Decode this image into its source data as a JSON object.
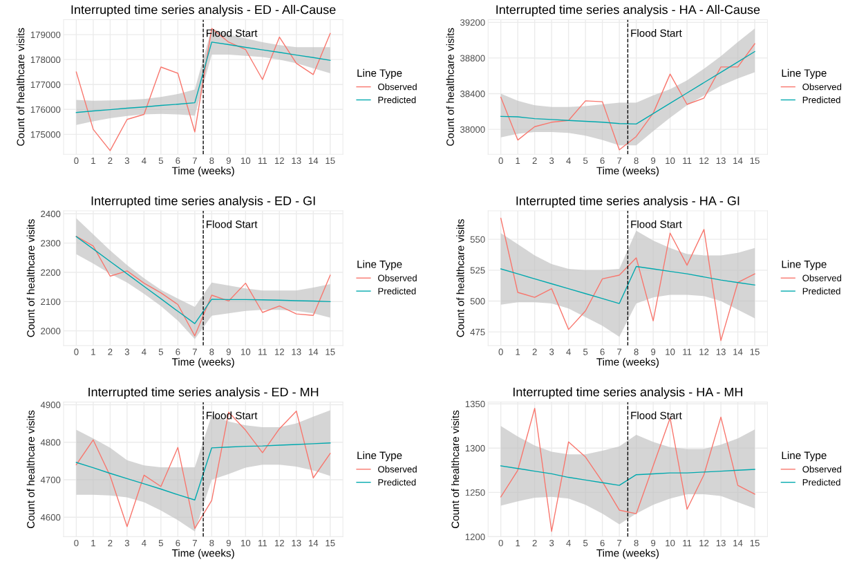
{
  "chart_data": [
    {
      "type": "line",
      "title": "Interrupted time series analysis - ED - All-Cause",
      "xlabel": "Time (weeks)",
      "ylabel": "Count of healthcare visits",
      "legend_title": "Line Type",
      "legend": "right",
      "grid": true,
      "line_style": "solid",
      "x": [
        0,
        1,
        2,
        3,
        4,
        5,
        6,
        7,
        8,
        9,
        10,
        11,
        12,
        13,
        14,
        15
      ],
      "xlim": [
        -0.75,
        15.75
      ],
      "xticks": [
        0,
        1,
        2,
        3,
        4,
        5,
        6,
        7,
        8,
        9,
        10,
        11,
        12,
        13,
        14,
        15
      ],
      "ylim": [
        174200,
        179600
      ],
      "yticks": [
        175000,
        176000,
        177000,
        178000,
        179000
      ],
      "ref_lines": [
        {
          "axis": "x",
          "value": 7.5,
          "label": "Flood Start",
          "color": "#000000",
          "line_style": "dashed"
        }
      ],
      "series": [
        {
          "name": "Observed",
          "color": "#f8766d",
          "values": [
            177500,
            175200,
            174350,
            175600,
            175800,
            177700,
            177450,
            175100,
            179250,
            178700,
            178400,
            177200,
            178900,
            177850,
            177400,
            179050
          ]
        },
        {
          "name": "Predicted",
          "color": "#00a9ae",
          "values": [
            175880,
            175940,
            175990,
            176050,
            176100,
            176160,
            176210,
            176270,
            178700,
            178600,
            178490,
            178390,
            178290,
            178180,
            178080,
            177970
          ],
          "lower": [
            175380,
            175520,
            175650,
            175740,
            175800,
            175820,
            175800,
            175750,
            178200,
            178200,
            178150,
            178100,
            178000,
            177850,
            177650,
            177450
          ],
          "upper": [
            176380,
            176350,
            176360,
            176380,
            176420,
            176500,
            176620,
            176800,
            179250,
            179000,
            178850,
            178700,
            178580,
            178500,
            178500,
            178500
          ]
        }
      ]
    },
    {
      "type": "line",
      "title": "Interrupted time series analysis - HA - All-Cause",
      "xlabel": "Time (weeks)",
      "ylabel": "Count of healthcare visits",
      "legend_title": "Line Type",
      "legend": "right",
      "grid": true,
      "line_style": "solid",
      "x": [
        0,
        1,
        2,
        3,
        4,
        5,
        6,
        7,
        8,
        9,
        10,
        11,
        12,
        13,
        14,
        15
      ],
      "xlim": [
        -0.75,
        15.75
      ],
      "xticks": [
        0,
        1,
        2,
        3,
        4,
        5,
        6,
        7,
        8,
        9,
        10,
        11,
        12,
        13,
        14,
        15
      ],
      "ylim": [
        37720,
        39230
      ],
      "yticks": [
        38000,
        38400,
        38800,
        39200
      ],
      "ref_lines": [
        {
          "axis": "x",
          "value": 7.5,
          "label": "Flood Start",
          "color": "#000000",
          "line_style": "dashed"
        }
      ],
      "series": [
        {
          "name": "Observed",
          "color": "#f8766d",
          "values": [
            38360,
            37880,
            38030,
            38080,
            38100,
            38320,
            38310,
            37770,
            37920,
            38180,
            38620,
            38280,
            38350,
            38700,
            38700,
            38960
          ]
        },
        {
          "name": "Predicted",
          "color": "#00a9ae",
          "values": [
            38145,
            38140,
            38120,
            38110,
            38100,
            38090,
            38080,
            38065,
            38060,
            38176,
            38292,
            38408,
            38524,
            38640,
            38756,
            38872
          ],
          "lower": [
            37910,
            37950,
            37970,
            37970,
            37960,
            37930,
            37880,
            37820,
            37820,
            37980,
            38130,
            38270,
            38380,
            38490,
            38570,
            38640
          ],
          "upper": [
            38400,
            38320,
            38270,
            38250,
            38250,
            38260,
            38280,
            38300,
            38300,
            38380,
            38450,
            38550,
            38680,
            38820,
            38980,
            39130
          ]
        }
      ]
    },
    {
      "type": "line",
      "title": "Interrupted time series analysis - ED - GI",
      "xlabel": "Time (weeks)",
      "ylabel": "Count of healthcare visits",
      "legend_title": "Line Type",
      "legend": "right",
      "grid": true,
      "line_style": "solid",
      "x": [
        0,
        1,
        2,
        3,
        4,
        5,
        6,
        7,
        8,
        9,
        10,
        11,
        12,
        13,
        14,
        15
      ],
      "xlim": [
        -0.75,
        15.75
      ],
      "xticks": [
        0,
        1,
        2,
        3,
        4,
        5,
        6,
        7,
        8,
        9,
        10,
        11,
        12,
        13,
        14,
        15
      ],
      "ylim": [
        1950,
        2410
      ],
      "yticks": [
        2000,
        2100,
        2200,
        2300,
        2400
      ],
      "ref_lines": [
        {
          "axis": "x",
          "value": 7.5,
          "label": "Flood Start",
          "color": "#000000",
          "line_style": "dashed"
        }
      ],
      "series": [
        {
          "name": "Observed",
          "color": "#f8766d",
          "values": [
            2323,
            2290,
            2187,
            2205,
            2163,
            2130,
            2090,
            1983,
            2122,
            2102,
            2163,
            2063,
            2085,
            2058,
            2053,
            2190
          ]
        },
        {
          "name": "Predicted",
          "color": "#00a9ae",
          "values": [
            2322,
            2280,
            2237,
            2195,
            2152,
            2110,
            2067,
            2025,
            2108,
            2107,
            2107,
            2106,
            2105,
            2103,
            2102,
            2100
          ],
          "lower": [
            2262,
            2230,
            2195,
            2165,
            2127,
            2085,
            2035,
            1972,
            2052,
            2060,
            2068,
            2072,
            2072,
            2068,
            2060,
            2045
          ],
          "upper": [
            2385,
            2330,
            2275,
            2225,
            2180,
            2140,
            2110,
            2082,
            2165,
            2155,
            2145,
            2138,
            2138,
            2138,
            2148,
            2160
          ]
        }
      ]
    },
    {
      "type": "line",
      "title": "Interrupted time series analysis - HA - GI",
      "xlabel": "Time (weeks)",
      "ylabel": "Count of healthcare visits",
      "legend_title": "Line Type",
      "legend": "right",
      "grid": true,
      "line_style": "solid",
      "x": [
        0,
        1,
        2,
        3,
        4,
        5,
        6,
        7,
        8,
        9,
        10,
        11,
        12,
        13,
        14,
        15
      ],
      "xlim": [
        -0.75,
        15.75
      ],
      "xticks": [
        0,
        1,
        2,
        3,
        4,
        5,
        6,
        7,
        8,
        9,
        10,
        11,
        12,
        13,
        14,
        15
      ],
      "ylim": [
        464,
        573
      ],
      "yticks": [
        475,
        500,
        525,
        550
      ],
      "ref_lines": [
        {
          "axis": "x",
          "value": 7.5,
          "label": "Flood Start",
          "color": "#000000",
          "line_style": "dashed"
        }
      ],
      "series": [
        {
          "name": "Observed",
          "color": "#f8766d",
          "values": [
            567,
            507,
            503,
            510,
            477,
            492,
            518,
            521,
            535,
            484,
            555,
            529,
            558,
            468,
            515,
            522
          ]
        },
        {
          "name": "Predicted",
          "color": "#00a9ae",
          "values": [
            526,
            522,
            518,
            514,
            510,
            506,
            502,
            498,
            528,
            526,
            524,
            522,
            519.5,
            517,
            515,
            513
          ],
          "lower": [
            497,
            499,
            499,
            498,
            494,
            487,
            480,
            471,
            498,
            503,
            505,
            505,
            504,
            500,
            493,
            486
          ],
          "upper": [
            555,
            546,
            537,
            530,
            526,
            525,
            525,
            526,
            557,
            549,
            543,
            538,
            537,
            537,
            539,
            543
          ]
        }
      ]
    },
    {
      "type": "line",
      "title": "Interrupted time series analysis - ED - MH",
      "xlabel": "Time (weeks)",
      "ylabel": "Count of healthcare visits",
      "legend_title": "Line Type",
      "legend": "right",
      "grid": true,
      "line_style": "solid",
      "x": [
        0,
        1,
        2,
        3,
        4,
        5,
        6,
        7,
        8,
        9,
        10,
        11,
        12,
        13,
        14,
        15
      ],
      "xlim": [
        -0.75,
        15.75
      ],
      "xticks": [
        0,
        1,
        2,
        3,
        4,
        5,
        6,
        7,
        8,
        9,
        10,
        11,
        12,
        13,
        14,
        15
      ],
      "ylim": [
        4548,
        4907
      ],
      "yticks": [
        4600,
        4700,
        4800,
        4900
      ],
      "ref_lines": [
        {
          "axis": "x",
          "value": 7.5,
          "label": "Flood Start",
          "color": "#000000",
          "line_style": "dashed"
        }
      ],
      "series": [
        {
          "name": "Observed",
          "color": "#f8766d",
          "values": [
            4740,
            4806,
            4710,
            4575,
            4712,
            4682,
            4786,
            4570,
            4645,
            4880,
            4832,
            4772,
            4836,
            4883,
            4705,
            4770
          ]
        },
        {
          "name": "Predicted",
          "color": "#00a9ae",
          "values": [
            4746,
            4732,
            4717,
            4703,
            4689,
            4675,
            4660,
            4646,
            4785,
            4787,
            4789,
            4790,
            4792,
            4794,
            4796,
            4798
          ],
          "lower": [
            4660,
            4660,
            4658,
            4653,
            4640,
            4618,
            4592,
            4562,
            4700,
            4715,
            4732,
            4740,
            4740,
            4735,
            4725,
            4710
          ],
          "upper": [
            4833,
            4810,
            4785,
            4752,
            4738,
            4733,
            4733,
            4733,
            4872,
            4855,
            4845,
            4840,
            4840,
            4850,
            4868,
            4885
          ]
        }
      ]
    },
    {
      "type": "line",
      "title": "Interrupted time series analysis - HA - MH",
      "xlabel": "Time (weeks)",
      "ylabel": "Count of healthcare visits",
      "legend_title": "Line Type",
      "legend": "right",
      "grid": true,
      "line_style": "solid",
      "x": [
        0,
        1,
        2,
        3,
        4,
        5,
        6,
        7,
        8,
        9,
        10,
        11,
        12,
        13,
        14,
        15
      ],
      "xlim": [
        -0.75,
        15.75
      ],
      "xticks": [
        0,
        1,
        2,
        3,
        4,
        5,
        6,
        7,
        8,
        9,
        10,
        11,
        12,
        13,
        14,
        15
      ],
      "ylim": [
        1200,
        1352
      ],
      "yticks": [
        1200,
        1250,
        1300,
        1350
      ],
      "ref_lines": [
        {
          "axis": "x",
          "value": 7.5,
          "label": "Flood Start",
          "color": "#000000",
          "line_style": "dashed"
        }
      ],
      "series": [
        {
          "name": "Observed",
          "color": "#f8766d",
          "values": [
            1245,
            1275,
            1345,
            1206,
            1307,
            1290,
            1262,
            1230,
            1226,
            1280,
            1334,
            1231,
            1270,
            1335,
            1258,
            1248
          ]
        },
        {
          "name": "Predicted",
          "color": "#00a9ae",
          "values": [
            1280,
            1277,
            1274,
            1271,
            1267,
            1264,
            1261,
            1258,
            1270,
            1271,
            1272,
            1272,
            1273,
            1274,
            1275,
            1276
          ],
          "lower": [
            1235,
            1240,
            1244,
            1245,
            1243,
            1236,
            1226,
            1214,
            1226,
            1236,
            1243,
            1248,
            1248,
            1246,
            1239,
            1232
          ],
          "upper": [
            1325,
            1313,
            1303,
            1296,
            1293,
            1293,
            1297,
            1302,
            1315,
            1307,
            1301,
            1299,
            1299,
            1304,
            1311,
            1321
          ]
        }
      ]
    }
  ]
}
